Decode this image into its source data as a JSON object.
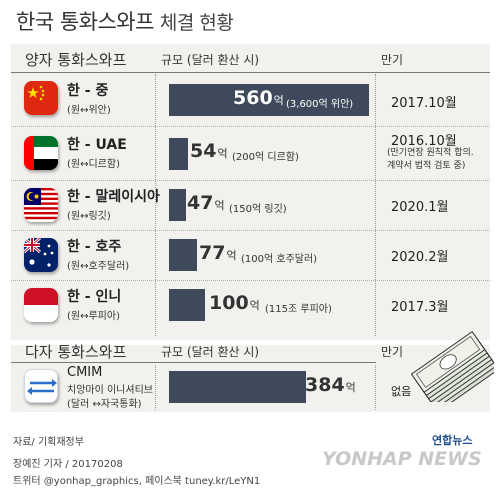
{
  "title": {
    "main": "한국 통화스와프",
    "sub": "체결 현황"
  },
  "bilateral": {
    "header_name": "양자 통화스와프",
    "header_scale": "규모 (달러 환산 시)",
    "header_maturity": "만기",
    "rows": [
      {
        "pair": "한 - 중",
        "sub": "(원↔위안)",
        "value": "560",
        "unit": "억",
        "note": "(3,600억 위안)",
        "maturity": "2017.10월"
      },
      {
        "pair": "한 - UAE",
        "sub": "(원↔디르함)",
        "value": "54",
        "unit": "억",
        "note": "(200억 디르함)",
        "maturity": "2016.10월",
        "maturity_note_1": "(만기연장 원칙적 합의.",
        "maturity_note_2": "계약서 법적 검토 중)"
      },
      {
        "pair": "한 - 말레이시아",
        "sub": "(원↔링깃)",
        "value": "47",
        "unit": "억",
        "note": "(150억 링깃)",
        "maturity": "2020.1월"
      },
      {
        "pair": "한 - 호주",
        "sub": "(원↔호주달러)",
        "value": "77",
        "unit": "억",
        "note": "(100억 호주달러)",
        "maturity": "2020.2월"
      },
      {
        "pair": "한 - 인니",
        "sub": "(원↔루피아)",
        "value": "100",
        "unit": "억",
        "note": "(115조 루피아)",
        "maturity": "2017.3월"
      }
    ]
  },
  "multilateral": {
    "header_name": "다자 통화스와프",
    "header_scale": "규모 (달러 환산 시)",
    "header_maturity": "만기",
    "row": {
      "name": "CMIM",
      "line2": "치앙마이 이니셔티브",
      "line3": "(달러 ↔자국통화)",
      "value": "384",
      "unit": "억",
      "maturity": "없음"
    }
  },
  "footer": {
    "source": "자료/ 기획재정부",
    "byline": "장예진 기자 / 20170208",
    "social": "트위터 @yonhap_graphics, 페이스북 tuney.kr/LeYN1",
    "logo": "연합뉴스",
    "watermark": "YONHAP NEWS"
  },
  "chart_data": {
    "type": "bar",
    "unit": "억 달러",
    "categories": [
      "한 - 중",
      "한 - UAE",
      "한 - 말레이시아",
      "한 - 호주",
      "한 - 인니",
      "CMIM"
    ],
    "values": [
      560,
      54,
      47,
      77,
      100,
      384
    ]
  },
  "colors": {
    "bar": "#3e4a5c",
    "panel": "#f3f1ee"
  }
}
